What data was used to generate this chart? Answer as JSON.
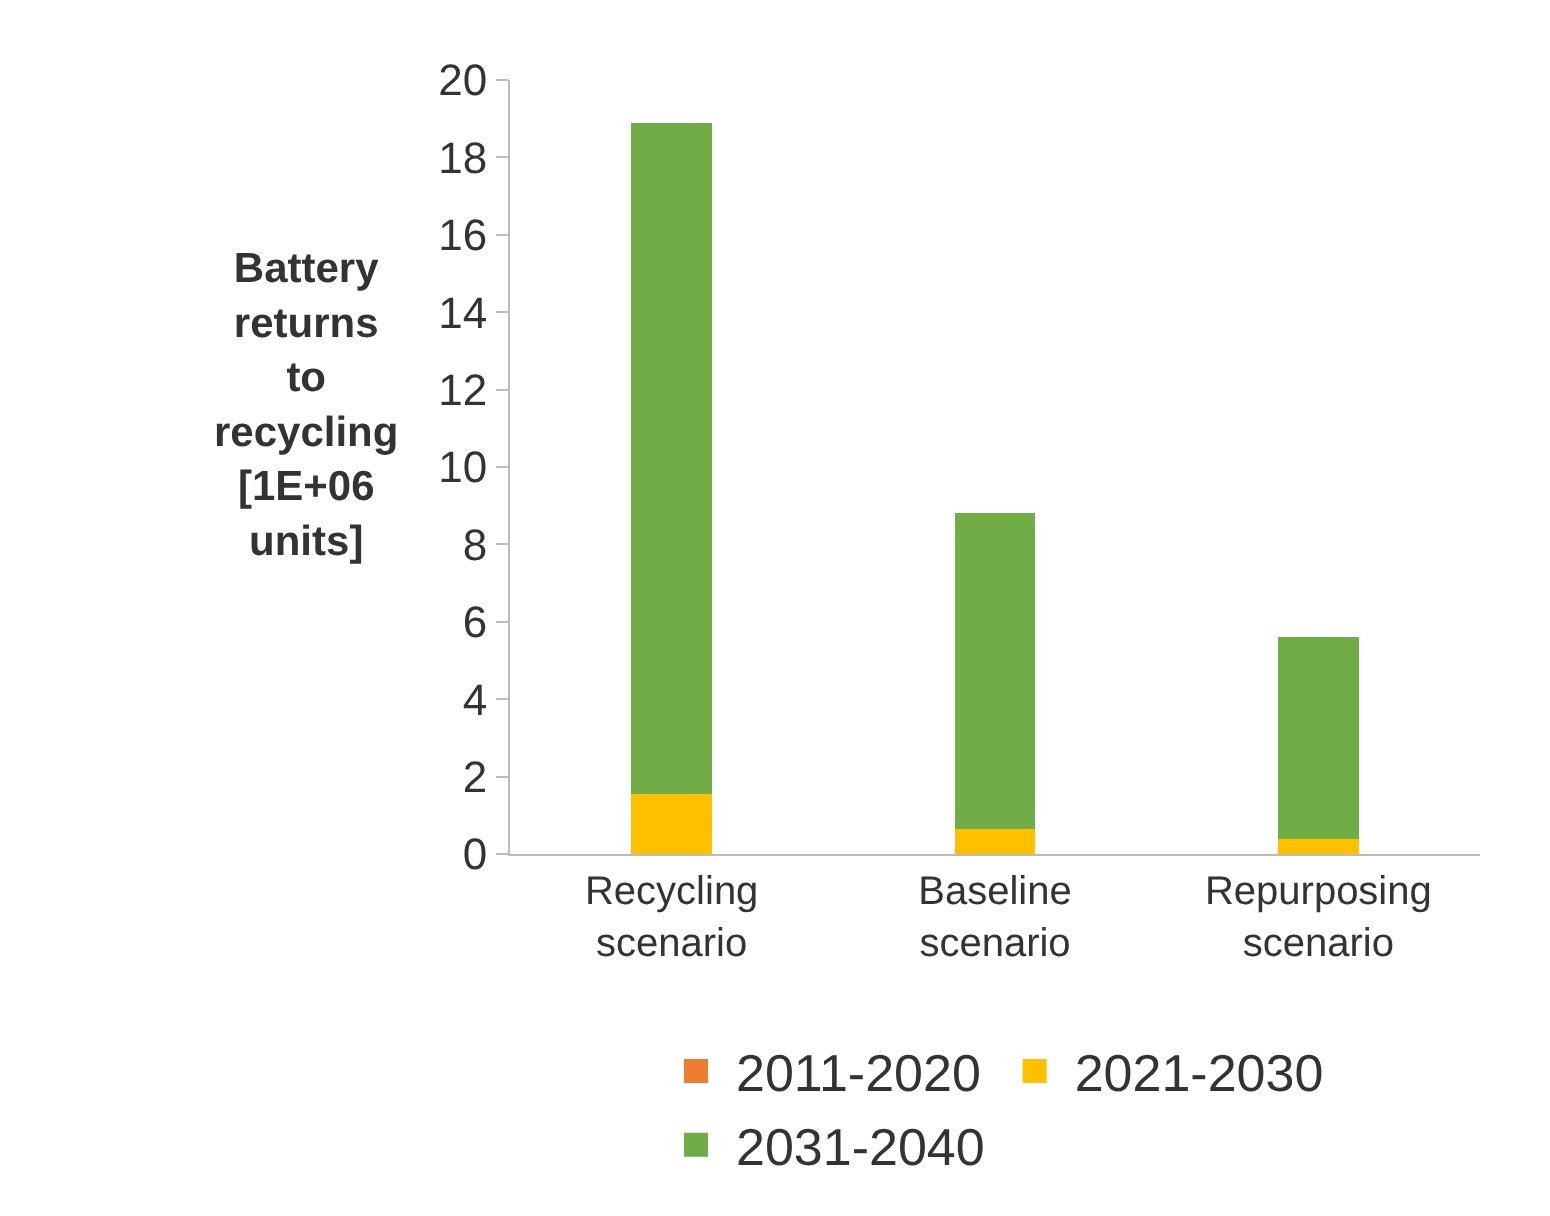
{
  "chart_data": {
    "type": "bar",
    "stacked": true,
    "ylabel": "Battery\nreturns\nto\nrecycling\n[1E+06\nunits]",
    "categories": [
      "Recycling\nscenario",
      "Baseline\nscenario",
      "Repurposing\nscenario"
    ],
    "series": [
      {
        "name": "2011-2020",
        "color": "#ed7d31",
        "values": [
          0,
          0,
          0
        ]
      },
      {
        "name": "2021-2030",
        "color": "#ffc000",
        "values": [
          1.55,
          0.65,
          0.4
        ]
      },
      {
        "name": "2031-2040",
        "color": "#70ad47",
        "values": [
          17.35,
          8.15,
          5.2
        ]
      }
    ],
    "ylim": [
      0,
      20
    ],
    "yticks": [
      0,
      2,
      4,
      6,
      8,
      10,
      12,
      14,
      16,
      18,
      20
    ],
    "grid": false,
    "legend": "bottom"
  }
}
